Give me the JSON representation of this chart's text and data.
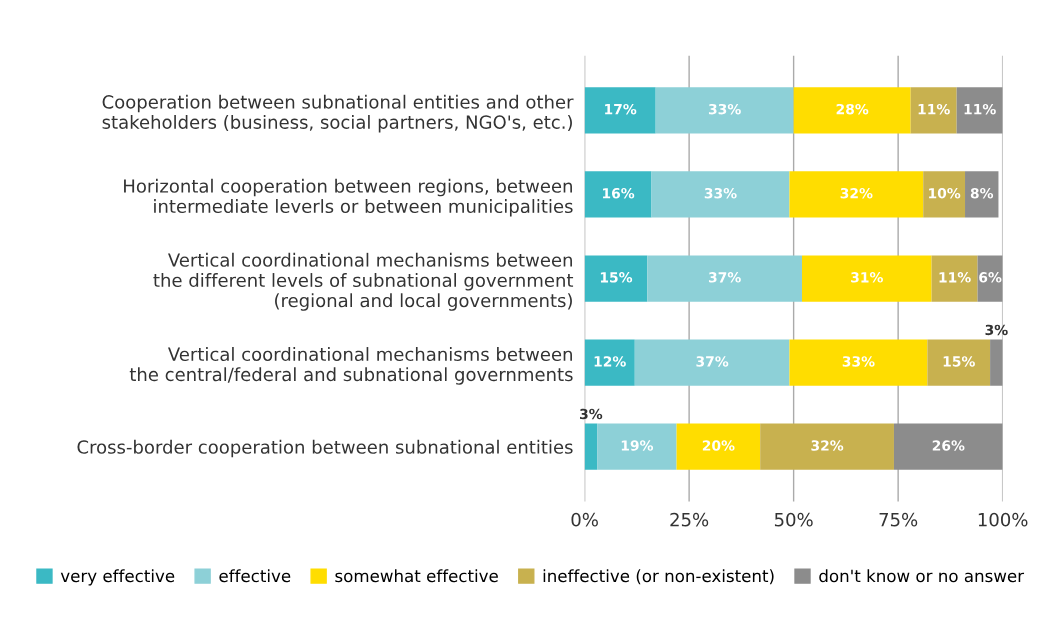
{
  "chart_data": {
    "type": "bar",
    "orientation": "horizontal",
    "stacked": true,
    "categories": [
      "Cooperation between subnational entities and other\nstakeholders (business, social partners, NGO's, etc.)",
      "Horizontal cooperation between regions, between\nintermediate leverls or between municipalities",
      "Vertical coordinational mechanisms between\nthe different levels of subnational government\n(regional and local governments)",
      "Vertical coordinational mechanisms between\nthe central/federal and subnational governments",
      "Cross-border cooperation between subnational entities"
    ],
    "series": [
      {
        "name": "very effective",
        "color": "#3bb9c4",
        "values": [
          17,
          16,
          15,
          12,
          3
        ],
        "value_labels": [
          "17%",
          "16%",
          "15%",
          "12%",
          "3%"
        ]
      },
      {
        "name": "effective",
        "color": "#8dd0d7",
        "values": [
          33,
          33,
          37,
          37,
          19
        ],
        "value_labels": [
          "33%",
          "33%",
          "37%",
          "37%",
          "19%"
        ]
      },
      {
        "name": "somewhat effective",
        "color": "#ffdd00",
        "values": [
          28,
          32,
          31,
          33,
          20
        ],
        "value_labels": [
          "28%",
          "32%",
          "31%",
          "33%",
          "20%"
        ]
      },
      {
        "name": "ineffective (or non-existent)",
        "color": "#c8b14f",
        "values": [
          11,
          10,
          11,
          15,
          32
        ],
        "value_labels": [
          "11%",
          "10%",
          "11%",
          "15%",
          "32%"
        ]
      },
      {
        "name": "don't know or no answer",
        "color": "#8c8c8c",
        "values": [
          11,
          8,
          6,
          3,
          26
        ],
        "value_labels": [
          "11%",
          "8%",
          "6%",
          "3%",
          "26%"
        ]
      }
    ],
    "xlim": [
      0,
      100
    ],
    "xticks": [
      {
        "value": 0,
        "label": "0%"
      },
      {
        "value": 25,
        "label": "25%"
      },
      {
        "value": 50,
        "label": "50%"
      },
      {
        "value": 75,
        "label": "75%"
      },
      {
        "value": 100,
        "label": "100%"
      }
    ],
    "grid": "x",
    "legend": "bottom"
  }
}
